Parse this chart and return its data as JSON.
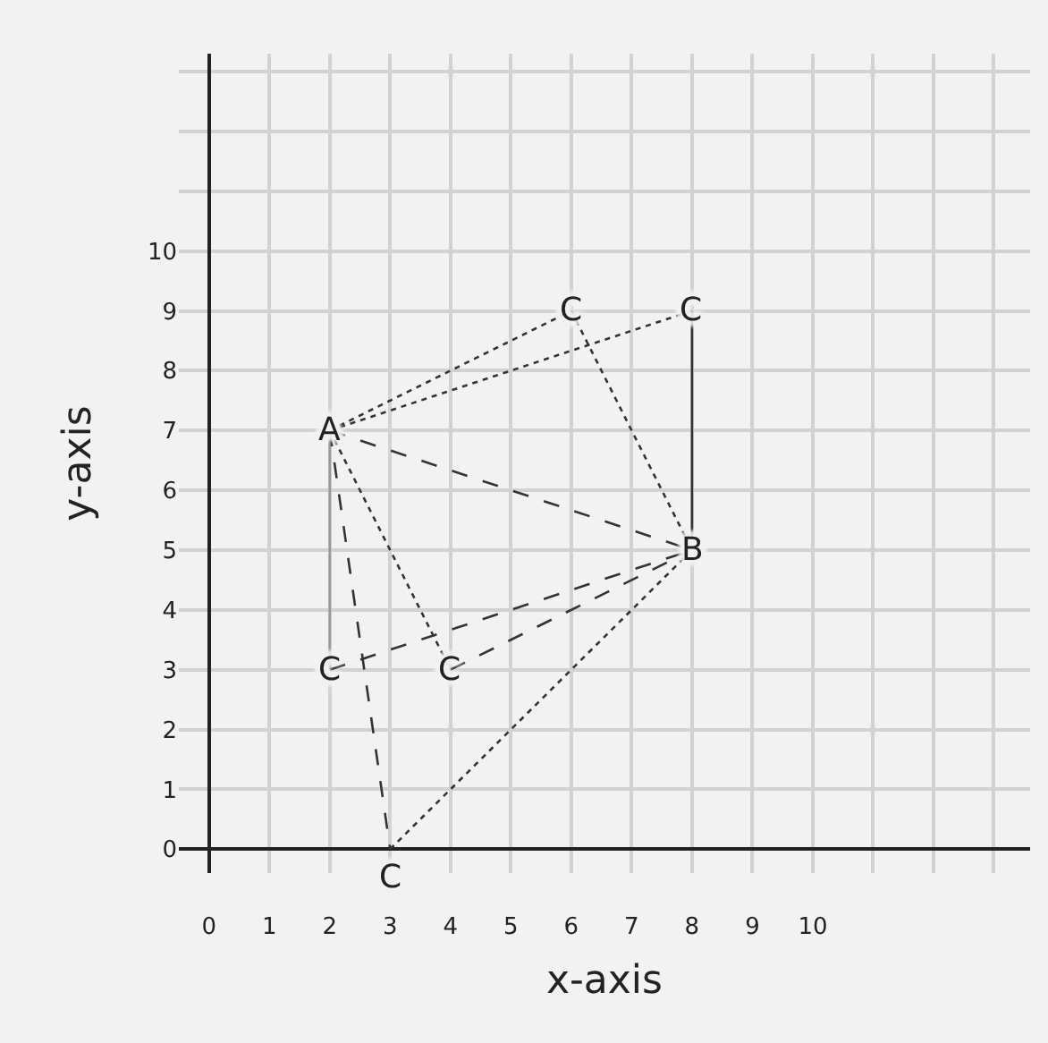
{
  "chart_data": {
    "type": "line",
    "xlabel": "x-axis",
    "ylabel": "y-axis",
    "xlim": [
      -0.5,
      13.6
    ],
    "ylim": [
      -0.4,
      13.3
    ],
    "xticks": [
      0,
      1,
      2,
      3,
      4,
      5,
      6,
      7,
      8,
      9,
      10,
      {
        "value": 11,
        "label": null
      },
      {
        "value": 12,
        "label": null
      },
      {
        "value": 13,
        "label": null
      }
    ],
    "yticks": [
      0,
      1,
      2,
      3,
      4,
      5,
      6,
      7,
      8,
      9,
      10,
      {
        "value": 11,
        "label": null
      },
      {
        "value": 12,
        "label": null
      },
      {
        "value": 13,
        "label": null
      }
    ],
    "grid": true,
    "marker": "none",
    "series": [
      {
        "x": [
          2,
          6
        ],
        "values": [
          7,
          9
        ],
        "color": "#333333",
        "line_style": "dotted"
      },
      {
        "x": [
          6,
          8
        ],
        "values": [
          9,
          5
        ],
        "color": "#333333",
        "line_style": "dotted"
      },
      {
        "x": [
          2,
          8
        ],
        "values": [
          7,
          9
        ],
        "color": "#333333",
        "line_style": "dotted"
      },
      {
        "x": [
          8,
          8
        ],
        "values": [
          9,
          5
        ],
        "color": "#333333",
        "line_style": "solid"
      },
      {
        "x": [
          2,
          8
        ],
        "values": [
          7,
          5
        ],
        "color": "#333333",
        "line_style": "dashed"
      },
      {
        "x": [
          2,
          2
        ],
        "values": [
          7,
          3
        ],
        "color": "#999999",
        "line_style": "solid"
      },
      {
        "x": [
          2,
          8
        ],
        "values": [
          3,
          5
        ],
        "color": "#333333",
        "line_style": "dashed"
      },
      {
        "x": [
          2,
          4
        ],
        "values": [
          7,
          3
        ],
        "color": "#333333",
        "line_style": "dotted"
      },
      {
        "x": [
          4,
          8
        ],
        "values": [
          3,
          5
        ],
        "color": "#333333",
        "line_style": "dashed"
      },
      {
        "x": [
          2,
          3
        ],
        "values": [
          7,
          0
        ],
        "color": "#333333",
        "line_style": "dashed"
      },
      {
        "x": [
          3,
          8
        ],
        "values": [
          0,
          5
        ],
        "color": "#333333",
        "line_style": "dotted"
      }
    ],
    "annotations": [
      {
        "text": "A",
        "x": 2,
        "y": 7
      },
      {
        "text": "B",
        "x": 8,
        "y": 5
      },
      {
        "text": "C",
        "x": 6,
        "y": 9
      },
      {
        "text": "C",
        "x": 8,
        "y": 9
      },
      {
        "text": "C",
        "x": 2,
        "y": 3
      },
      {
        "text": "C",
        "x": 4,
        "y": 3
      },
      {
        "text": "C",
        "x": 3,
        "y": 0
      }
    ]
  }
}
